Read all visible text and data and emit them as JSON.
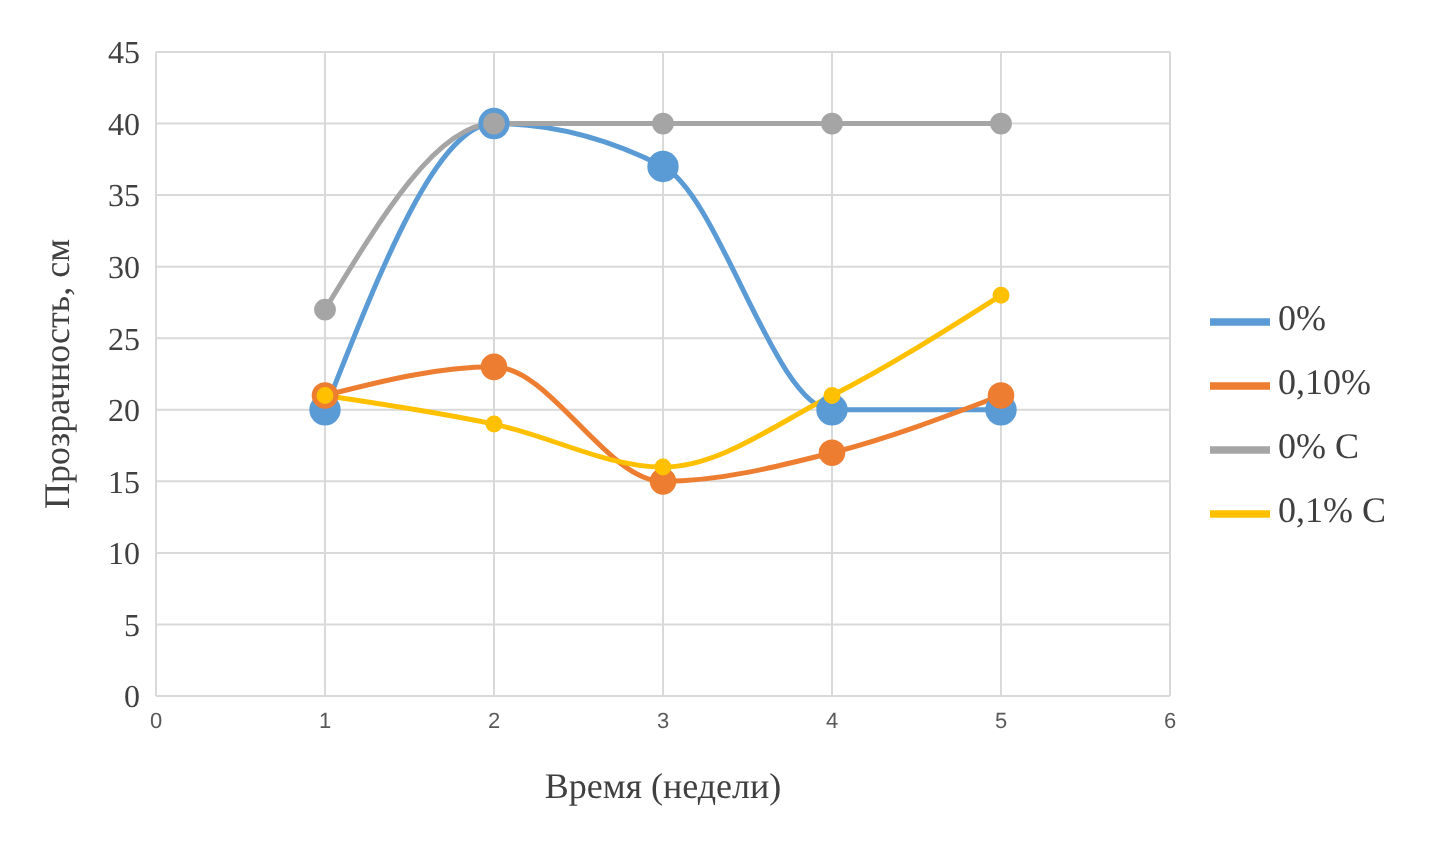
{
  "chart_data": {
    "type": "line",
    "xlabel": "Время (недели)",
    "ylabel": "Прозрачность, см",
    "x": [
      1,
      2,
      3,
      4,
      5
    ],
    "xlim": [
      0,
      6
    ],
    "xticks": [
      0,
      1,
      2,
      3,
      4,
      5,
      6
    ],
    "ylim": [
      0,
      45
    ],
    "yticks": [
      0,
      5,
      10,
      15,
      20,
      25,
      30,
      35,
      40,
      45
    ],
    "grid": true,
    "legend": "right",
    "marker": "circle",
    "line_style": "solid",
    "series": [
      {
        "name": "0%",
        "color": "#5b9bd5",
        "values": [
          20,
          40,
          37,
          20,
          20
        ]
      },
      {
        "name": "0,10%",
        "color": "#ed7d31",
        "values": [
          21,
          23,
          15,
          17,
          21
        ]
      },
      {
        "name": "0% C",
        "color": "#a5a5a5",
        "values": [
          27,
          40,
          40,
          40,
          40
        ]
      },
      {
        "name": "0,1% C",
        "color": "#ffc000",
        "values": [
          21,
          19,
          16,
          21,
          28
        ]
      }
    ]
  }
}
